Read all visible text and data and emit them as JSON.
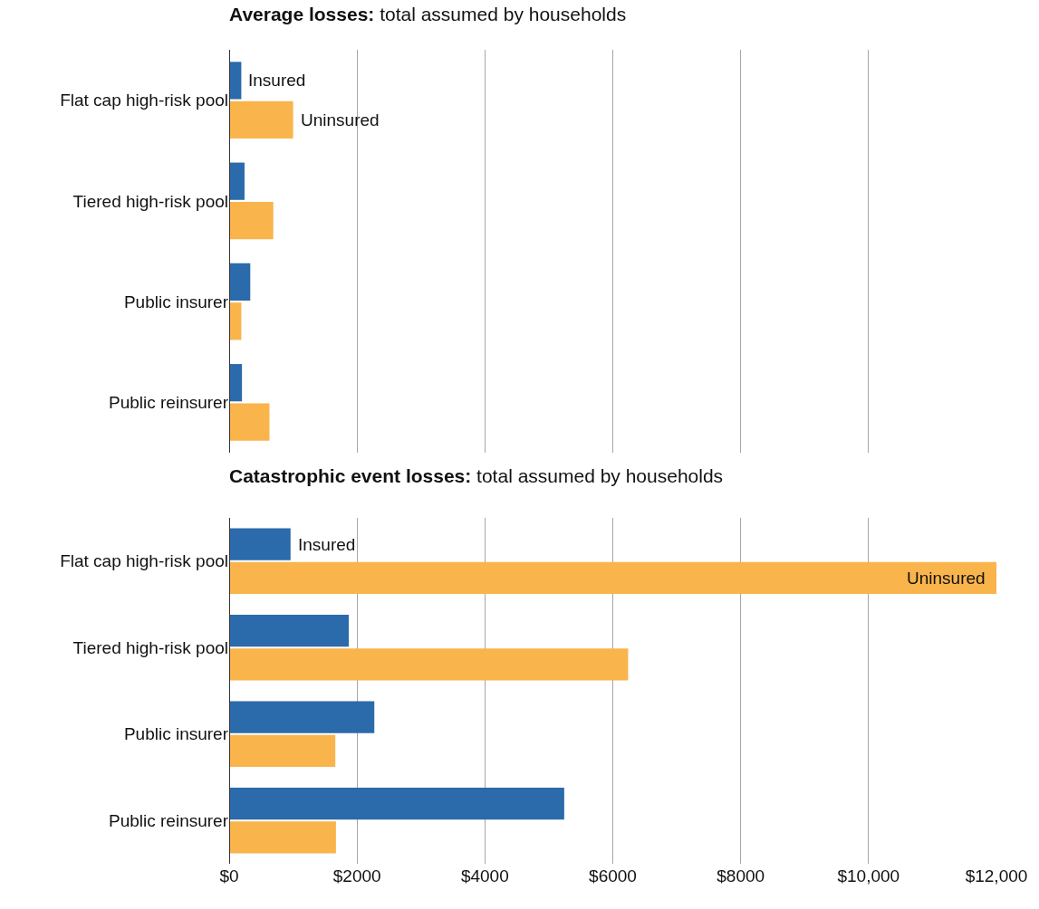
{
  "chart_data": [
    {
      "type": "bar",
      "orientation": "horizontal",
      "title": "Average losses: total assumed by households",
      "categories": [
        "Flat cap high-risk pool",
        "Tiered high-risk pool",
        "Public insurer",
        "Public reinsurer"
      ],
      "series": [
        {
          "name": "Insured",
          "color": "#2b6aab",
          "values": [
            190,
            240,
            330,
            200
          ]
        },
        {
          "name": "Uninsured",
          "color": "#f9b44b",
          "values": [
            1000,
            690,
            190,
            630
          ]
        }
      ],
      "xlim": [
        0,
        12000
      ],
      "xticks": [
        {
          "value": 0,
          "label": null
        },
        {
          "value": 2000,
          "label": null
        },
        {
          "value": 4000,
          "label": null
        },
        {
          "value": 6000,
          "label": null
        },
        {
          "value": 8000,
          "label": null
        },
        {
          "value": 10000,
          "label": null
        },
        {
          "value": 12000,
          "label": null
        }
      ],
      "grid": "x",
      "legend": false,
      "tick_labels": "y"
    },
    {
      "type": "bar",
      "orientation": "horizontal",
      "title": "Catastrophic event losses: total assumed by households",
      "categories": [
        "Flat cap high-risk pool",
        "Tiered high-risk pool",
        "Public insurer",
        "Public reinsurer"
      ],
      "series": [
        {
          "name": "Insured",
          "color": "#2b6aab",
          "values": [
            960,
            1870,
            2270,
            5240
          ]
        },
        {
          "name": "Uninsured",
          "color": "#f9b44b",
          "values": [
            12000,
            6240,
            1660,
            1670
          ]
        }
      ],
      "xlim": [
        0,
        12000
      ],
      "xticks": [
        {
          "value": 0,
          "label": "$0"
        },
        {
          "value": 2000,
          "label": "$2000"
        },
        {
          "value": 4000,
          "label": "$4000"
        },
        {
          "value": 6000,
          "label": "$6000"
        },
        {
          "value": 8000,
          "label": "$8000"
        },
        {
          "value": 10000,
          "label": "$10,000"
        },
        {
          "value": 12000,
          "label": "$12,000"
        }
      ],
      "grid": "x",
      "legend": false
    }
  ]
}
